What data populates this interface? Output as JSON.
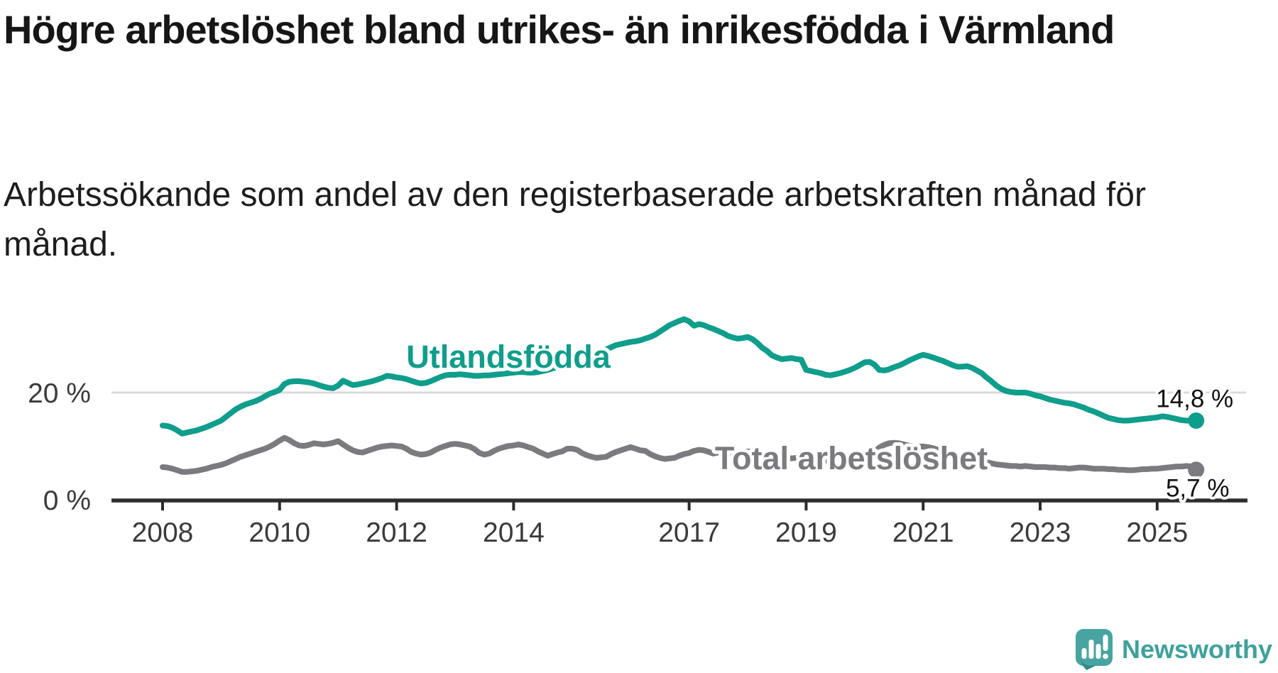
{
  "header": {
    "title": "Högre arbetslöshet bland utrikes- än inrikesfödda i Värmland",
    "subtitle": "Arbetssökande som andel av den registerbaserade arbetskraften månad för månad."
  },
  "logo": {
    "text": "Newsworthy",
    "icon": "newsworthy-speech-bubble-chart-icon",
    "color": "#3ea19c"
  },
  "chart_data": {
    "type": "line",
    "title": "Högre arbetslöshet bland utrikes- än inrikesfödda i Värmland",
    "subtitle": "Arbetssökande som andel av den registerbaserade arbetskraften månad för månad.",
    "x_unit": "month",
    "x_start_year": 2008,
    "x_start_month": 1,
    "x_end_label": "sep 2025",
    "x_tick_years": [
      2008,
      2010,
      2012,
      2014,
      2017,
      2019,
      2021,
      2023,
      2025
    ],
    "ylim": [
      0,
      36
    ],
    "grid": "horizontal-20-only",
    "legend_position": "inline-labels",
    "y_axis": {
      "gridlines": [
        {
          "value": 20,
          "label": "20 %"
        }
      ],
      "baseline": {
        "value": 0,
        "label": "0 %"
      }
    },
    "colors": {
      "utlandsfodda": "#0f9d8c",
      "total": "#7b7b7f",
      "axis": "#2d2d2d",
      "gridline": "#dadada",
      "tick_text": "#3a3a3a"
    },
    "series": [
      {
        "name": "Utlandsfödda",
        "color": "#0f9d8c",
        "end_label": "14,8 %",
        "last_value": 14.8,
        "values": [
          13.9,
          13.8,
          13.5,
          13.0,
          12.4,
          12.6,
          12.8,
          13.0,
          13.3,
          13.6,
          14.0,
          14.4,
          14.8,
          15.5,
          16.2,
          16.9,
          17.4,
          17.8,
          18.1,
          18.4,
          18.8,
          19.3,
          19.8,
          20.1,
          20.5,
          21.6,
          22.0,
          22.1,
          22.1,
          22.0,
          21.9,
          21.7,
          21.4,
          21.1,
          20.9,
          20.8,
          21.3,
          22.2,
          21.8,
          21.4,
          21.5,
          21.7,
          21.9,
          22.1,
          22.4,
          22.7,
          23.1,
          23.0,
          22.8,
          22.7,
          22.5,
          22.2,
          21.9,
          21.7,
          21.8,
          22.1,
          22.5,
          22.9,
          23.2,
          23.3,
          23.3,
          23.4,
          23.3,
          23.2,
          23.1,
          23.1,
          23.2,
          23.2,
          23.3,
          23.4,
          23.5,
          23.6,
          23.7,
          23.8,
          23.8,
          23.7,
          23.7,
          23.8,
          24.0,
          24.2,
          24.5,
          24.7,
          25.0,
          25.2,
          25.5,
          25.8,
          26.1,
          26.4,
          26.7,
          27.0,
          27.4,
          28.0,
          28.4,
          28.8,
          29.0,
          29.2,
          29.4,
          29.5,
          29.7,
          30.0,
          30.3,
          30.7,
          31.3,
          31.9,
          32.5,
          32.9,
          33.3,
          33.6,
          33.2,
          32.4,
          32.7,
          32.5,
          32.1,
          31.8,
          31.4,
          31.0,
          30.5,
          30.2,
          30.0,
          30.1,
          30.3,
          29.9,
          29.2,
          28.3,
          27.7,
          26.9,
          26.5,
          26.2,
          26.3,
          26.4,
          26.2,
          26.1,
          24.2,
          24.0,
          23.8,
          23.6,
          23.3,
          23.2,
          23.4,
          23.6,
          23.9,
          24.2,
          24.6,
          25.1,
          25.6,
          25.7,
          25.2,
          24.2,
          24.1,
          24.3,
          24.7,
          25.0,
          25.4,
          25.9,
          26.3,
          26.7,
          27.0,
          26.8,
          26.5,
          26.2,
          25.9,
          25.5,
          25.1,
          24.8,
          24.8,
          24.9,
          24.6,
          24.1,
          23.6,
          22.8,
          22.1,
          21.3,
          20.7,
          20.3,
          20.1,
          20.0,
          20.0,
          20.0,
          19.8,
          19.5,
          19.3,
          19.0,
          18.7,
          18.5,
          18.3,
          18.1,
          18.0,
          17.8,
          17.5,
          17.2,
          16.8,
          16.5,
          16.1,
          15.7,
          15.3,
          15.1,
          14.9,
          14.8,
          14.8,
          14.9,
          15.0,
          15.1,
          15.2,
          15.3,
          15.4,
          15.6,
          15.5,
          15.3,
          15.1,
          14.9,
          14.8,
          14.8,
          14.8
        ]
      },
      {
        "name": "Total arbetslöshet",
        "color": "#7b7b7f",
        "end_label": "5,7 %",
        "last_value": 5.7,
        "values": [
          6.2,
          6.1,
          5.9,
          5.6,
          5.3,
          5.3,
          5.4,
          5.5,
          5.7,
          5.9,
          6.2,
          6.4,
          6.6,
          6.9,
          7.3,
          7.7,
          8.1,
          8.4,
          8.7,
          9.0,
          9.3,
          9.6,
          10.0,
          10.5,
          11.1,
          11.6,
          11.2,
          10.6,
          10.2,
          10.1,
          10.3,
          10.6,
          10.5,
          10.4,
          10.5,
          10.7,
          11.0,
          10.4,
          9.8,
          9.3,
          9.0,
          8.9,
          9.2,
          9.5,
          9.8,
          10.0,
          10.1,
          10.2,
          10.1,
          10.0,
          9.6,
          9.0,
          8.7,
          8.5,
          8.6,
          8.9,
          9.4,
          9.8,
          10.1,
          10.4,
          10.5,
          10.4,
          10.2,
          10.0,
          9.5,
          8.8,
          8.5,
          8.7,
          9.2,
          9.6,
          9.9,
          10.1,
          10.2,
          10.4,
          10.2,
          9.9,
          9.6,
          9.1,
          8.7,
          8.3,
          8.6,
          8.9,
          9.1,
          9.6,
          9.6,
          9.4,
          8.8,
          8.4,
          8.1,
          7.9,
          8.0,
          8.1,
          8.6,
          9.0,
          9.3,
          9.6,
          9.9,
          9.6,
          9.3,
          9.2,
          8.6,
          8.2,
          7.9,
          7.7,
          7.8,
          7.9,
          8.3,
          8.6,
          8.8,
          9.2,
          9.4,
          9.3,
          9.0,
          8.7,
          8.9,
          9.0,
          8.8,
          8.7,
          8.8,
          9.0,
          9.1,
          9.0,
          8.8,
          8.5,
          8.2,
          8.0,
          8.1,
          8.0,
          7.9,
          7.8,
          7.9,
          8.0,
          7.8,
          7.7,
          7.6,
          7.5,
          7.4,
          7.5,
          7.7,
          7.6,
          7.7,
          7.8,
          7.9,
          8.1,
          8.3,
          8.4,
          8.9,
          9.8,
          10.3,
          10.6,
          10.7,
          10.6,
          10.4,
          10.2,
          10.0,
          10.0,
          10.0,
          9.9,
          9.7,
          9.4,
          9.1,
          8.8,
          8.6,
          8.4,
          8.1,
          7.8,
          7.6,
          7.4,
          7.2,
          7.1,
          6.9,
          6.7,
          6.6,
          6.5,
          6.4,
          6.4,
          6.3,
          6.4,
          6.3,
          6.2,
          6.2,
          6.2,
          6.1,
          6.1,
          6.0,
          6.0,
          5.9,
          6.0,
          6.1,
          6.1,
          6.0,
          5.9,
          5.9,
          5.9,
          5.8,
          5.8,
          5.7,
          5.7,
          5.6,
          5.6,
          5.7,
          5.8,
          5.8,
          5.9,
          5.9,
          6.0,
          6.1,
          6.2,
          6.3,
          6.3,
          6.4,
          6.3,
          5.7
        ]
      }
    ]
  }
}
